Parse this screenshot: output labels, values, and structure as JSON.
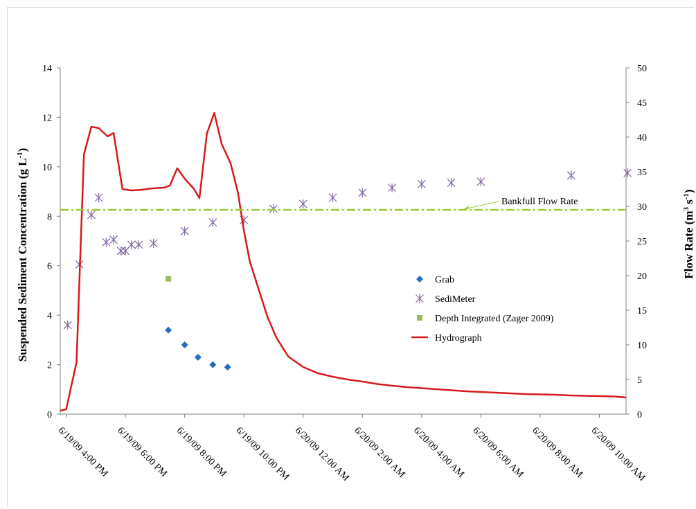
{
  "chart_data": {
    "type": "line",
    "title": "",
    "ylabel": "Suspended Sediment Concentration (g L-1)",
    "ylabel_parts": [
      "Suspended Sediment Concentration (g L",
      "-1",
      ")"
    ],
    "y2label": "Flow Rate (m3 s-1)",
    "y2label_parts": [
      "Flow Rate (m",
      "3",
      " s",
      "-1",
      ")"
    ],
    "xlabel": "",
    "ylim": [
      0,
      14
    ],
    "y2lim": [
      0,
      50
    ],
    "yticks": [
      "0",
      "2",
      "4",
      "6",
      "8",
      "10",
      "12",
      "14"
    ],
    "y2ticks": [
      "0",
      "5",
      "10",
      "15",
      "20",
      "25",
      "30",
      "35",
      "40",
      "45",
      "50"
    ],
    "xlim_hours": [
      15.8,
      34.9
    ],
    "xticks": [
      {
        "hour": 16,
        "label": "6/19/09 4:00 PM"
      },
      {
        "hour": 18,
        "label": "6/19/09 6:00 PM"
      },
      {
        "hour": 20,
        "label": "6/19/09 8:00 PM"
      },
      {
        "hour": 22,
        "label": "6/19/09 10:00 PM"
      },
      {
        "hour": 24,
        "label": "6/20/09 12:00 AM"
      },
      {
        "hour": 26,
        "label": "6/20/09 2:00 AM"
      },
      {
        "hour": 28,
        "label": "6/20/09 4:00 AM"
      },
      {
        "hour": 30,
        "label": "6/20/09 6:00 AM"
      },
      {
        "hour": 32,
        "label": "6/20/09 8:00 AM"
      },
      {
        "hour": 34,
        "label": "6/20/09 10:00 AM"
      }
    ],
    "series": [
      {
        "name": "Grab",
        "axis": "left",
        "marker": "diamond",
        "color": "#1f6fbf",
        "points": [
          [
            19.45,
            3.4
          ],
          [
            20.0,
            2.8
          ],
          [
            20.45,
            2.3
          ],
          [
            20.95,
            2.0
          ],
          [
            21.45,
            1.9
          ]
        ]
      },
      {
        "name": "SediMeter",
        "axis": "left",
        "marker": "asterisk",
        "color": "#8064a2",
        "points": [
          [
            16.05,
            3.6
          ],
          [
            16.45,
            6.05
          ],
          [
            16.85,
            8.05
          ],
          [
            17.1,
            8.75
          ],
          [
            17.35,
            6.95
          ],
          [
            17.6,
            7.05
          ],
          [
            17.85,
            6.6
          ],
          [
            18.0,
            6.6
          ],
          [
            18.2,
            6.85
          ],
          [
            18.45,
            6.85
          ],
          [
            18.95,
            6.9
          ],
          [
            20.0,
            7.4
          ],
          [
            20.95,
            7.75
          ],
          [
            22.0,
            7.85
          ],
          [
            23.0,
            8.3
          ],
          [
            24.0,
            8.5
          ],
          [
            25.0,
            8.75
          ],
          [
            26.0,
            8.95
          ],
          [
            27.0,
            9.15
          ],
          [
            28.0,
            9.3
          ],
          [
            29.0,
            9.35
          ],
          [
            30.0,
            9.4
          ],
          [
            33.05,
            9.65
          ],
          [
            34.95,
            9.75
          ]
        ]
      },
      {
        "name": "Depth Integrated (Zager 2009)",
        "axis": "left",
        "marker": "square",
        "color": "#9bbb59",
        "points": [
          [
            19.45,
            5.47
          ]
        ]
      },
      {
        "name": "Hydrograph",
        "axis": "right",
        "type": "line",
        "color": "#d7191c",
        "points": [
          [
            15.8,
            0.5
          ],
          [
            16.0,
            0.7
          ],
          [
            16.35,
            7.5
          ],
          [
            16.6,
            37.5
          ],
          [
            16.85,
            41.5
          ],
          [
            17.1,
            41.3
          ],
          [
            17.4,
            40.1
          ],
          [
            17.6,
            40.6
          ],
          [
            17.9,
            32.5
          ],
          [
            18.2,
            32.3
          ],
          [
            18.55,
            32.4
          ],
          [
            18.9,
            32.6
          ],
          [
            19.3,
            32.7
          ],
          [
            19.5,
            33.0
          ],
          [
            19.75,
            35.5
          ],
          [
            20.0,
            34.0
          ],
          [
            20.3,
            32.6
          ],
          [
            20.5,
            31.2
          ],
          [
            20.75,
            40.5
          ],
          [
            21.0,
            43.5
          ],
          [
            21.25,
            39.0
          ],
          [
            21.55,
            36.2
          ],
          [
            21.8,
            32.0
          ],
          [
            22.0,
            26.5
          ],
          [
            22.2,
            22.0
          ],
          [
            22.5,
            18.0
          ],
          [
            22.8,
            14.0
          ],
          [
            23.1,
            11.0
          ],
          [
            23.5,
            8.3
          ],
          [
            24.0,
            6.8
          ],
          [
            24.5,
            5.9
          ],
          [
            25.0,
            5.4
          ],
          [
            25.5,
            5.0
          ],
          [
            26.0,
            4.7
          ],
          [
            26.5,
            4.35
          ],
          [
            27.0,
            4.1
          ],
          [
            27.5,
            3.9
          ],
          [
            28.0,
            3.75
          ],
          [
            28.5,
            3.6
          ],
          [
            29.0,
            3.45
          ],
          [
            29.5,
            3.3
          ],
          [
            30.0,
            3.2
          ],
          [
            30.5,
            3.1
          ],
          [
            31.0,
            3.0
          ],
          [
            31.5,
            2.9
          ],
          [
            32.0,
            2.85
          ],
          [
            32.5,
            2.8
          ],
          [
            33.0,
            2.7
          ],
          [
            33.5,
            2.65
          ],
          [
            34.0,
            2.6
          ],
          [
            34.5,
            2.55
          ],
          [
            34.9,
            2.4
          ]
        ]
      }
    ],
    "reference_line": {
      "label": "Bankfull Flow Rate",
      "axis": "right",
      "value": 29.5,
      "style": "dash-dot",
      "color": "#9bcb3b",
      "arrow_color": "#9bcb3b"
    },
    "legend": {
      "position": "center-right",
      "entries": [
        "Grab",
        "SediMeter",
        "Depth Integrated (Zager 2009)",
        "Hydrograph"
      ]
    },
    "grid": false
  }
}
